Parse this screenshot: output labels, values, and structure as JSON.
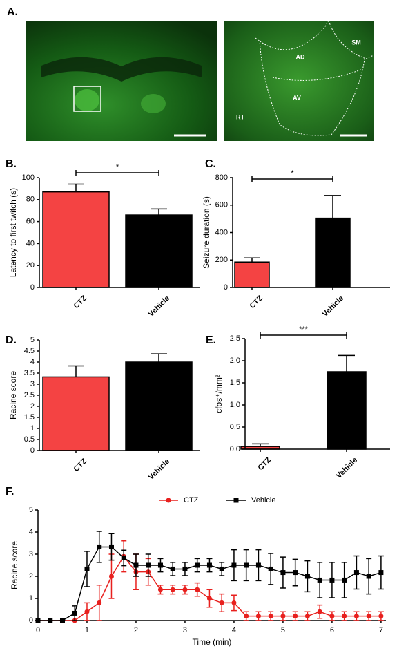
{
  "image_panel": {
    "panel": "A.",
    "regions": [
      "AD",
      "SM",
      "AV",
      "RT"
    ]
  },
  "chart_data": [
    {
      "type": "bar",
      "panel": "B.",
      "ylabel": "Latency to first twitch (s)",
      "categories": [
        "CTZ",
        "Vehicle"
      ],
      "values": [
        87,
        66
      ],
      "errors": [
        7,
        5.5
      ],
      "colors": [
        "#f44343",
        "#000000"
      ],
      "ylim": [
        0,
        100
      ],
      "yticks": [
        0,
        20,
        40,
        60,
        80,
        100
      ],
      "annotation": "*"
    },
    {
      "type": "bar",
      "panel": "C.",
      "ylabel": "Seizure duration (s)",
      "categories": [
        "CTZ",
        "Vehicle"
      ],
      "values": [
        185,
        505
      ],
      "errors": [
        30,
        165
      ],
      "colors": [
        "#f44343",
        "#000000"
      ],
      "ylim": [
        0,
        800
      ],
      "yticks": [
        0,
        200,
        400,
        600,
        800
      ],
      "annotation": "*"
    },
    {
      "type": "bar",
      "panel": "D.",
      "ylabel": "Racine score",
      "categories": [
        "CTZ",
        "Vehicle"
      ],
      "values": [
        3.33,
        4.0
      ],
      "errors": [
        0.5,
        0.37
      ],
      "colors": [
        "#f44343",
        "#000000"
      ],
      "ylim": [
        0,
        5
      ],
      "yticks": [
        0,
        0.5,
        1,
        1.5,
        2,
        2.5,
        3,
        3.5,
        4,
        4.5,
        5
      ]
    },
    {
      "type": "bar",
      "panel": "E.",
      "ylabel": "cfos⁺/mm²",
      "categories": [
        "CTZ",
        "Vehicle"
      ],
      "values": [
        0.06,
        1.75
      ],
      "errors": [
        0.06,
        0.37
      ],
      "colors": [
        "#f44343",
        "#000000"
      ],
      "ylim": [
        0,
        2.5
      ],
      "yticks": [
        {
          "value": 0,
          "label": "0.0"
        },
        0.5,
        {
          "value": 1,
          "label": "1.0"
        },
        1.5,
        {
          "value": 2,
          "label": "2.0"
        },
        2.5
      ],
      "annotation": "***"
    },
    {
      "type": "line",
      "panel": "F.",
      "xlabel": "Time (min)",
      "ylabel": "Racine score",
      "x": [
        0,
        0.25,
        0.5,
        0.75,
        1,
        1.25,
        1.5,
        1.75,
        2,
        2.25,
        2.5,
        2.75,
        3,
        3.25,
        3.5,
        3.75,
        4,
        4.25,
        4.5,
        4.75,
        5,
        5.25,
        5.5,
        5.75,
        6,
        6.25,
        6.5,
        6.75,
        7
      ],
      "series": [
        {
          "name": "CTZ",
          "color": "#e8201e",
          "marker": "circle",
          "values": [
            0,
            0,
            0,
            0,
            0.4,
            0.8,
            2.0,
            2.9,
            2.2,
            2.2,
            1.4,
            1.4,
            1.4,
            1.4,
            1.0,
            0.8,
            0.8,
            0.2,
            0.2,
            0.2,
            0.2,
            0.2,
            0.2,
            0.4,
            0.2,
            0.2,
            0.2,
            0.2,
            0.2
          ],
          "errors": [
            0,
            0,
            0,
            0,
            0.4,
            0.8,
            1.0,
            0.7,
            0.8,
            0.6,
            0.2,
            0.2,
            0.2,
            0.3,
            0.4,
            0.4,
            0.35,
            0.2,
            0.2,
            0.2,
            0.2,
            0.2,
            0.2,
            0.3,
            0.2,
            0.2,
            0.2,
            0.2,
            0.2
          ]
        },
        {
          "name": "Vehicle",
          "color": "#000000",
          "marker": "square",
          "values": [
            0,
            0,
            0,
            0.33,
            2.33,
            3.33,
            3.33,
            2.83,
            2.5,
            2.5,
            2.5,
            2.33,
            2.33,
            2.5,
            2.5,
            2.33,
            2.5,
            2.5,
            2.5,
            2.33,
            2.17,
            2.17,
            2.0,
            1.83,
            1.83,
            1.83,
            2.17,
            2.0,
            2.17
          ],
          "errors": [
            0,
            0,
            0,
            0.33,
            0.8,
            0.7,
            0.6,
            0.35,
            0.5,
            0.5,
            0.3,
            0.3,
            0.3,
            0.3,
            0.3,
            0.3,
            0.7,
            0.7,
            0.7,
            0.7,
            0.7,
            0.6,
            0.7,
            0.8,
            0.8,
            0.8,
            0.75,
            0.8,
            0.75
          ]
        }
      ],
      "xlim": [
        0,
        7.1
      ],
      "xticks": [
        0,
        1,
        2,
        3,
        4,
        5,
        6,
        7
      ],
      "ylim": [
        0,
        5
      ],
      "yticks": [
        0,
        1,
        2,
        3,
        4,
        5
      ]
    }
  ]
}
